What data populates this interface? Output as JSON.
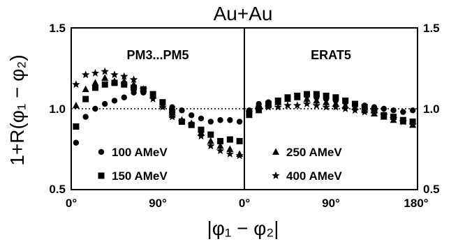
{
  "title": "Au+Au",
  "ylabel": "1+R(φ₁ − φ₂)",
  "xlabel": "|φ₁ − φ₂|",
  "reference_line": 1.0,
  "y_ticks": [
    "0.5",
    "1.0",
    "1.5"
  ],
  "x_ticks": [
    "0°",
    "90°",
    "0°",
    "90°",
    "180°"
  ],
  "chart_data": [
    {
      "type": "scatter",
      "panel_label": "PM3...PM5",
      "xlim": [
        0,
        180
      ],
      "ylim": [
        0.5,
        1.5
      ],
      "series": [
        {
          "name": "100 AMeV",
          "marker": "circle",
          "x": [
            5,
            15,
            25,
            35,
            45,
            55,
            65,
            75,
            85,
            95,
            105,
            115,
            125,
            135,
            145,
            155,
            165,
            175
          ],
          "y": [
            0.79,
            0.95,
            1.0,
            1.03,
            1.05,
            1.07,
            1.1,
            1.1,
            1.09,
            1.04,
            1.01,
            0.99,
            0.96,
            0.94,
            0.92,
            0.93,
            0.93,
            0.92
          ]
        },
        {
          "name": "150 AMeV",
          "marker": "square",
          "x": [
            5,
            15,
            25,
            35,
            45,
            55,
            65,
            75,
            85,
            95,
            105,
            115,
            125,
            135,
            145,
            155,
            165,
            175
          ],
          "y": [
            0.89,
            1.06,
            1.13,
            1.15,
            1.16,
            1.15,
            1.13,
            1.12,
            1.09,
            1.04,
            0.98,
            0.92,
            0.9,
            0.87,
            0.84,
            0.8,
            0.81,
            0.8
          ]
        },
        {
          "name": "250 AMeV",
          "marker": "triangle",
          "x": [
            5,
            15,
            25,
            35,
            45,
            55,
            65,
            75,
            85,
            95,
            105,
            115,
            125,
            135,
            145,
            155,
            165,
            175
          ],
          "y": [
            1.02,
            1.12,
            1.16,
            1.19,
            1.17,
            1.17,
            1.15,
            1.12,
            1.08,
            1.02,
            0.96,
            0.93,
            0.91,
            0.85,
            0.8,
            0.77,
            0.75,
            0.72
          ]
        },
        {
          "name": "400 AMeV",
          "marker": "star",
          "x": [
            5,
            15,
            25,
            35,
            45,
            55,
            65,
            75,
            85,
            95,
            105,
            115,
            125,
            135,
            145,
            155,
            165,
            175
          ],
          "y": [
            1.15,
            1.21,
            1.22,
            1.23,
            1.21,
            1.2,
            1.18,
            1.12,
            1.06,
            1.01,
            0.95,
            0.92,
            0.9,
            0.83,
            0.77,
            0.74,
            0.72,
            0.71
          ]
        }
      ]
    },
    {
      "type": "scatter",
      "panel_label": "ERAT5",
      "xlim": [
        0,
        180
      ],
      "ylim": [
        0.5,
        1.5
      ],
      "series": [
        {
          "name": "100 AMeV",
          "marker": "circle",
          "x": [
            5,
            15,
            25,
            35,
            45,
            55,
            65,
            75,
            85,
            95,
            105,
            115,
            125,
            135,
            145,
            155,
            165,
            175
          ],
          "y": [
            0.99,
            1.03,
            1.04,
            1.05,
            1.06,
            1.08,
            1.08,
            1.07,
            1.06,
            1.05,
            1.04,
            1.03,
            1.02,
            1.01,
            1.0,
            0.99,
            0.98,
            0.99
          ]
        },
        {
          "name": "150 AMeV",
          "marker": "square",
          "x": [
            5,
            15,
            25,
            35,
            45,
            55,
            65,
            75,
            85,
            95,
            105,
            115,
            125,
            135,
            145,
            155,
            165,
            175
          ],
          "y": [
            0.97,
            1.0,
            1.03,
            1.05,
            1.07,
            1.08,
            1.09,
            1.09,
            1.08,
            1.07,
            1.05,
            1.03,
            1.01,
            0.99,
            0.96,
            0.95,
            0.93,
            0.92
          ]
        },
        {
          "name": "250 AMeV",
          "marker": "triangle",
          "x": [
            5,
            15,
            25,
            35,
            45,
            55,
            65,
            75,
            85,
            95,
            105,
            115,
            125,
            135,
            145,
            155,
            165,
            175
          ],
          "y": [
            0.96,
            0.99,
            1.02,
            1.04,
            1.06,
            1.07,
            1.06,
            1.05,
            1.04,
            1.03,
            1.02,
            1.01,
            0.99,
            0.97,
            0.95,
            0.93,
            0.92,
            0.9
          ]
        },
        {
          "name": "400 AMeV",
          "marker": "star",
          "x": [
            5,
            15,
            25,
            35,
            45,
            55,
            65,
            75,
            85,
            95,
            105,
            115,
            125,
            135,
            145,
            155,
            165,
            175
          ],
          "y": [
            0.98,
            1.0,
            1.01,
            1.01,
            1.02,
            1.02,
            1.03,
            1.02,
            1.01,
            1.01,
            1.0,
            0.99,
            0.98,
            0.97,
            0.96,
            0.94,
            0.92,
            0.9
          ]
        }
      ]
    }
  ]
}
